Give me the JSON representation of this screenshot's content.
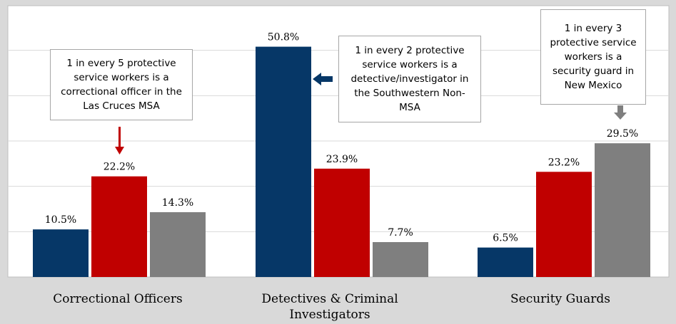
{
  "chart_data": {
    "type": "bar",
    "categories": [
      "Correctional Officers",
      "Detectives & Criminal Investigators",
      "Security Guards"
    ],
    "series": [
      {
        "values": [
          10.5,
          50.8,
          6.5
        ],
        "labels": [
          "10.5%",
          "50.8%",
          "6.5%"
        ],
        "color": "#063767"
      },
      {
        "values": [
          22.2,
          23.9,
          23.2
        ],
        "labels": [
          "22.2%",
          "23.9%",
          "23.2%"
        ],
        "color": "#c00000"
      },
      {
        "values": [
          14.3,
          7.7,
          29.5
        ],
        "labels": [
          "14.3%",
          "7.7%",
          "29.5%"
        ],
        "color": "#7f7f7f"
      }
    ],
    "ylim": [
      0,
      60
    ],
    "grid": true,
    "title": "",
    "xlabel": "",
    "ylabel": ""
  },
  "annotations": [
    {
      "text": "1 in every 5 protective service workers is a correctional officer in the Las Cruces MSA",
      "arrow_color": "#c00000",
      "arrow_direction": "down"
    },
    {
      "text": "1 in every 2 protective service workers is a detective/investigator in the Southwestern Non-MSA",
      "arrow_color": "#063767",
      "arrow_direction": "left"
    },
    {
      "text": "1 in every 3 protective service workers is a security guard in New Mexico",
      "arrow_color": "#7f7f7f",
      "arrow_direction": "down"
    }
  ],
  "colors": {
    "background": "#d9d9d9",
    "plot_background": "#ffffff",
    "gridline": "#d9d9d9"
  }
}
